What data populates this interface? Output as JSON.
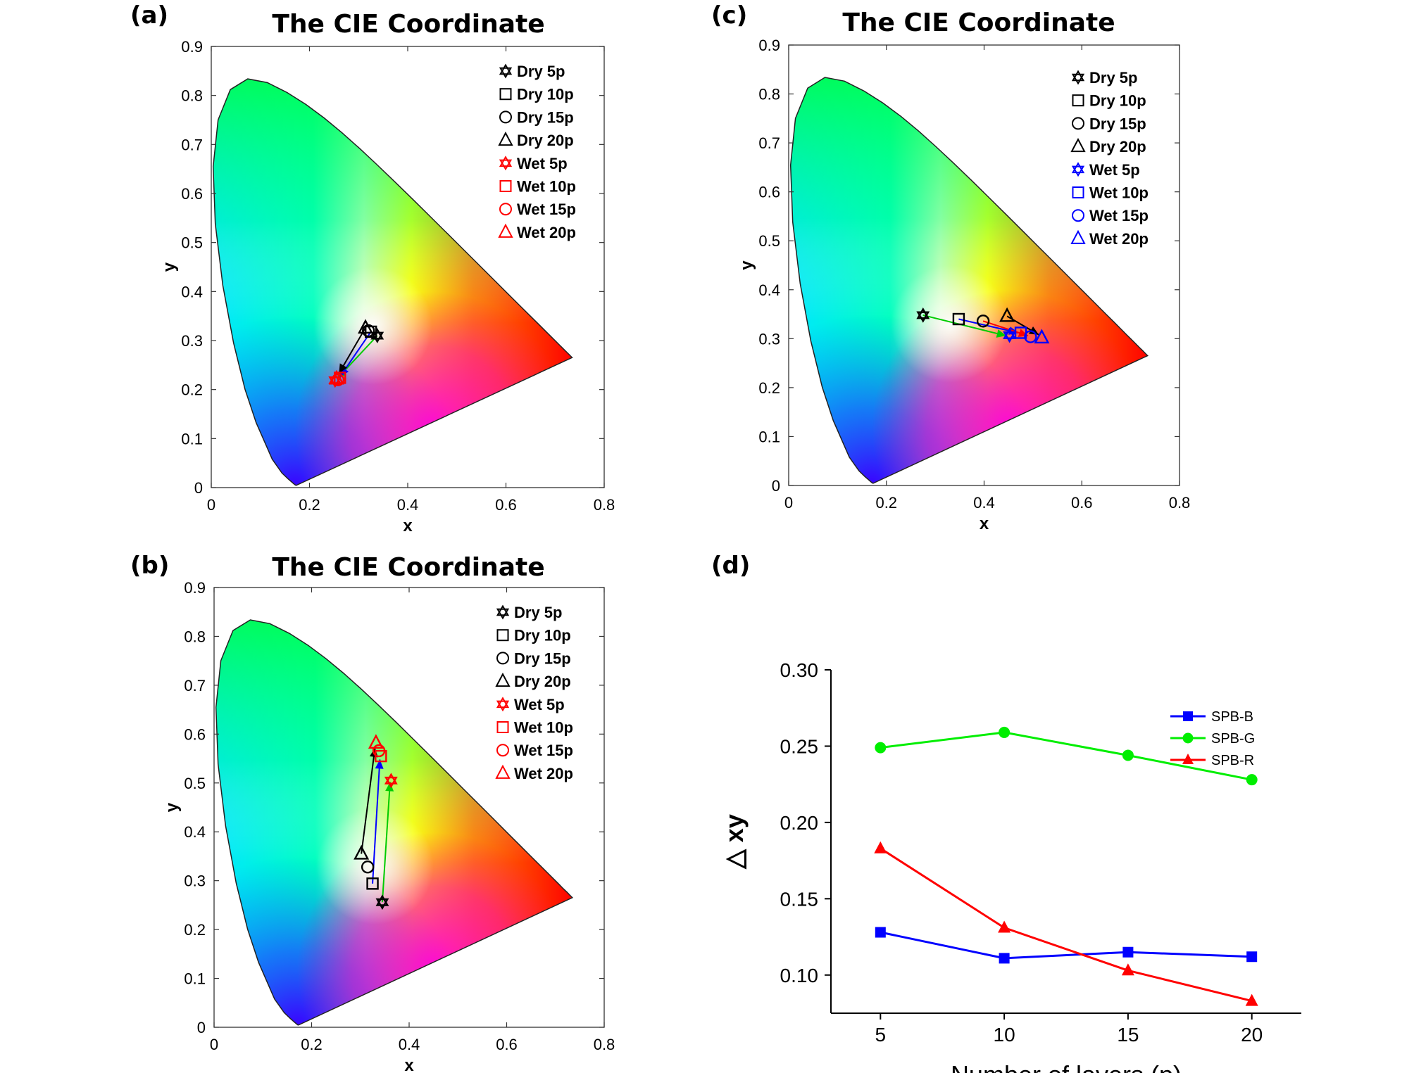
{
  "chart_data": [
    {
      "id": "a",
      "panel_label": "(a)",
      "type": "scatter",
      "title": "The CIE Coordinate",
      "xlabel": "x",
      "ylabel": "y",
      "xlim": [
        0,
        0.8
      ],
      "ylim": [
        0,
        0.9
      ],
      "xticks": [
        "0",
        "0.2",
        "0.4",
        "0.6",
        "0.8"
      ],
      "yticks": [
        "0",
        "0.1",
        "0.2",
        "0.3",
        "0.4",
        "0.5",
        "0.6",
        "0.7",
        "0.8",
        "0.9"
      ],
      "wet_color": "#ff0000",
      "legend": [
        "Dry 5p",
        "Dry 10p",
        "Dry 15p",
        "Dry 20p",
        "Wet 5p",
        "Wet 10p",
        "Wet 15p",
        "Wet 20p"
      ],
      "points": {
        "dry": [
          [
            0.338,
            0.31
          ],
          [
            0.325,
            0.318
          ],
          [
            0.32,
            0.32
          ],
          [
            0.314,
            0.326
          ]
        ],
        "wet": [
          [
            0.252,
            0.219
          ],
          [
            0.262,
            0.224
          ],
          [
            0.258,
            0.22
          ],
          [
            0.255,
            0.222
          ]
        ]
      },
      "arrows": [
        {
          "from": [
            0.338,
            0.31
          ],
          "to": [
            0.256,
            0.222
          ],
          "color": "#00cc00"
        },
        {
          "from": [
            0.325,
            0.318
          ],
          "to": [
            0.262,
            0.226
          ],
          "color": "#0000ff"
        },
        {
          "from": [
            0.314,
            0.326
          ],
          "to": [
            0.26,
            0.233
          ],
          "color": "#000000"
        }
      ]
    },
    {
      "id": "b",
      "panel_label": "(b)",
      "type": "scatter",
      "title": "The CIE Coordinate",
      "xlabel": "x",
      "ylabel": "y",
      "xlim": [
        0,
        0.8
      ],
      "ylim": [
        0,
        0.9
      ],
      "xticks": [
        "0",
        "0.2",
        "0.4",
        "0.6",
        "0.8"
      ],
      "yticks": [
        "0",
        "0.1",
        "0.2",
        "0.3",
        "0.4",
        "0.5",
        "0.6",
        "0.7",
        "0.8",
        "0.9"
      ],
      "wet_color": "#ff0000",
      "legend": [
        "Dry 5p",
        "Dry 10p",
        "Dry 15p",
        "Dry 20p",
        "Wet 5p",
        "Wet 10p",
        "Wet 15p",
        "Wet 20p"
      ],
      "points": {
        "dry": [
          [
            0.345,
            0.256
          ],
          [
            0.325,
            0.294
          ],
          [
            0.315,
            0.328
          ],
          [
            0.302,
            0.355
          ]
        ],
        "wet": [
          [
            0.363,
            0.505
          ],
          [
            0.342,
            0.555
          ],
          [
            0.338,
            0.566
          ],
          [
            0.332,
            0.582
          ]
        ]
      },
      "arrows": [
        {
          "from": [
            0.345,
            0.256
          ],
          "to": [
            0.361,
            0.502
          ],
          "color": "#00cc00"
        },
        {
          "from": [
            0.325,
            0.294
          ],
          "to": [
            0.34,
            0.548
          ],
          "color": "#0000ff"
        },
        {
          "from": [
            0.302,
            0.355
          ],
          "to": [
            0.33,
            0.572
          ],
          "color": "#000000"
        }
      ]
    },
    {
      "id": "c",
      "panel_label": "(c)",
      "type": "scatter",
      "title": "The CIE Coordinate",
      "xlabel": "x",
      "ylabel": "y",
      "xlim": [
        0,
        0.8
      ],
      "ylim": [
        0,
        0.9
      ],
      "xticks": [
        "0",
        "0.2",
        "0.4",
        "0.6",
        "0.8"
      ],
      "yticks": [
        "0",
        "0.1",
        "0.2",
        "0.3",
        "0.4",
        "0.5",
        "0.6",
        "0.7",
        "0.8",
        "0.9"
      ],
      "wet_color": "#0000ff",
      "legend": [
        "Dry 5p",
        "Dry 10p",
        "Dry 15p",
        "Dry 20p",
        "Wet 5p",
        "Wet 10p",
        "Wet 15p",
        "Wet 20p"
      ],
      "points": {
        "dry": [
          [
            0.275,
            0.348
          ],
          [
            0.348,
            0.34
          ],
          [
            0.398,
            0.336
          ],
          [
            0.447,
            0.346
          ]
        ],
        "wet": [
          [
            0.452,
            0.307
          ],
          [
            0.475,
            0.312
          ],
          [
            0.495,
            0.304
          ],
          [
            0.518,
            0.302
          ]
        ]
      },
      "arrows": [
        {
          "from": [
            0.275,
            0.348
          ],
          "to": [
            0.445,
            0.306
          ],
          "color": "#00cc00"
        },
        {
          "from": [
            0.348,
            0.34
          ],
          "to": [
            0.47,
            0.312
          ],
          "color": "#0000ff"
        },
        {
          "from": [
            0.398,
            0.336
          ],
          "to": [
            0.49,
            0.306
          ],
          "color": "#ff0000"
        },
        {
          "from": [
            0.447,
            0.346
          ],
          "to": [
            0.512,
            0.308
          ],
          "color": "#000000"
        }
      ]
    },
    {
      "id": "d",
      "panel_label": "(d)",
      "type": "line",
      "title": "",
      "xlabel": "Number of layers (p)",
      "ylabel": "△ xy",
      "xlim": [
        3,
        22
      ],
      "ylim": [
        0.075,
        0.3
      ],
      "xticks": [
        5,
        10,
        15,
        20
      ],
      "yticks": [
        0.1,
        0.15,
        0.2,
        0.25,
        0.3
      ],
      "x": [
        5,
        10,
        15,
        20
      ],
      "series": [
        {
          "name": "SPB-B",
          "color": "#0000ff",
          "marker": "square",
          "values": [
            0.128,
            0.111,
            0.115,
            0.112
          ]
        },
        {
          "name": "SPB-G",
          "color": "#00ee00",
          "marker": "circle",
          "values": [
            0.249,
            0.259,
            0.244,
            0.228
          ]
        },
        {
          "name": "SPB-R",
          "color": "#ff0000",
          "marker": "triangle",
          "values": [
            0.183,
            0.131,
            0.103,
            0.083
          ]
        }
      ]
    }
  ]
}
